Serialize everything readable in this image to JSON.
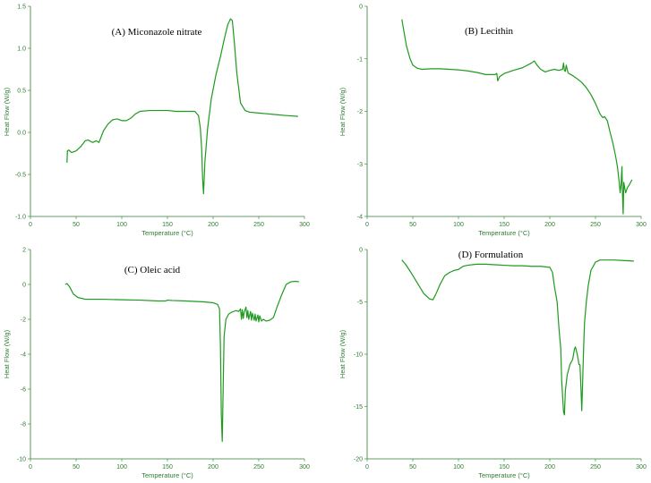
{
  "chart_data": [
    {
      "type": "line",
      "title": "(A) Miconazole nitrate",
      "xlabel": "Temperature (°C)",
      "ylabel": "Heat Flow (W/g)",
      "xlim": [
        0,
        300
      ],
      "ylim": [
        -1.0,
        1.5
      ],
      "xticks": [
        0,
        50,
        100,
        150,
        200,
        250,
        300
      ],
      "yticks": [
        -1.0,
        -0.5,
        0.0,
        0.5,
        1.0,
        1.5
      ],
      "ytick_labels": [
        "-1.0",
        "-0.5",
        "0.0",
        "0.5",
        "1.0",
        "1.5"
      ],
      "series": [
        {
          "color": "#1e9a1e",
          "x": [
            40,
            40.5,
            42,
            45,
            50,
            55,
            60,
            63,
            68,
            72,
            75,
            80,
            85,
            90,
            95,
            100,
            105,
            110,
            115,
            120,
            130,
            140,
            150,
            160,
            170,
            180,
            184,
            186,
            187.5,
            188.5,
            189.5,
            191,
            194,
            198,
            203,
            208,
            212,
            216,
            219,
            221,
            223,
            226,
            230,
            235,
            240,
            250,
            260,
            270,
            280,
            293
          ],
          "y": [
            -0.36,
            -0.22,
            -0.21,
            -0.24,
            -0.22,
            -0.17,
            -0.1,
            -0.09,
            -0.12,
            -0.1,
            -0.12,
            0.02,
            0.1,
            0.15,
            0.16,
            0.14,
            0.14,
            0.17,
            0.22,
            0.25,
            0.26,
            0.26,
            0.26,
            0.25,
            0.25,
            0.25,
            0.2,
            0.05,
            -0.2,
            -0.55,
            -0.73,
            -0.35,
            0.05,
            0.4,
            0.68,
            0.9,
            1.1,
            1.28,
            1.35,
            1.33,
            1.1,
            0.7,
            0.35,
            0.26,
            0.24,
            0.23,
            0.22,
            0.21,
            0.2,
            0.19
          ]
        }
      ]
    },
    {
      "type": "line",
      "title": "(B) Lecithin",
      "xlabel": "Temperature (°C)",
      "ylabel": "Heat Flow (W/g)",
      "xlim": [
        0,
        300
      ],
      "ylim": [
        -4,
        0
      ],
      "xticks": [
        0,
        50,
        100,
        150,
        200,
        250,
        300
      ],
      "yticks": [
        -4,
        -3,
        -2,
        -1,
        0
      ],
      "ytick_labels": [
        "-4",
        "-3",
        "-2",
        "-1",
        "0"
      ],
      "series": [
        {
          "color": "#1e9a1e",
          "x": [
            38,
            40,
            43,
            47,
            50,
            55,
            60,
            70,
            80,
            90,
            100,
            110,
            120,
            130,
            140,
            142,
            143,
            145,
            150,
            160,
            170,
            180,
            183,
            186,
            190,
            195,
            200,
            205,
            210,
            214,
            215,
            216,
            217,
            218,
            219,
            220,
            225,
            230,
            235,
            240,
            245,
            250,
            255,
            258,
            260,
            263,
            266,
            269,
            272,
            274,
            276,
            277,
            278,
            279,
            279.6,
            280.3,
            281,
            283,
            285,
            287,
            290
          ],
          "y": [
            -0.25,
            -0.45,
            -0.75,
            -1.0,
            -1.12,
            -1.18,
            -1.2,
            -1.19,
            -1.19,
            -1.2,
            -1.21,
            -1.23,
            -1.26,
            -1.3,
            -1.3,
            -1.28,
            -1.42,
            -1.34,
            -1.28,
            -1.22,
            -1.17,
            -1.08,
            -1.04,
            -1.12,
            -1.2,
            -1.25,
            -1.22,
            -1.2,
            -1.22,
            -1.2,
            -1.08,
            -1.22,
            -1.24,
            -1.12,
            -1.2,
            -1.27,
            -1.32,
            -1.38,
            -1.45,
            -1.55,
            -1.68,
            -1.85,
            -2.05,
            -2.12,
            -2.1,
            -2.18,
            -2.4,
            -2.6,
            -2.85,
            -3.05,
            -3.35,
            -3.55,
            -3.4,
            -3.05,
            -3.6,
            -3.95,
            -3.35,
            -3.55,
            -3.45,
            -3.4,
            -3.3
          ]
        }
      ]
    },
    {
      "type": "line",
      "title": "(C) Oleic acid",
      "xlabel": "Temperature (°C)",
      "ylabel": "Heat Flow (W/g)",
      "xlim": [
        0,
        300
      ],
      "ylim": [
        -10,
        2
      ],
      "xticks": [
        0,
        50,
        100,
        150,
        200,
        250,
        300
      ],
      "yticks": [
        -10,
        -8,
        -6,
        -4,
        -2,
        0,
        2
      ],
      "ytick_labels": [
        "-10",
        "-8",
        "-6",
        "-4",
        "-2",
        "0",
        "2"
      ],
      "series": [
        {
          "color": "#1e9a1e",
          "x": [
            38,
            40,
            43,
            47,
            52,
            60,
            80,
            100,
            120,
            140,
            148,
            150,
            155,
            170,
            190,
            200,
            205,
            207,
            208,
            209,
            210,
            211,
            212,
            214,
            217,
            220,
            225,
            228,
            230,
            231,
            232,
            233,
            234,
            236,
            237,
            238,
            239,
            241,
            242,
            243,
            245,
            246,
            247,
            249,
            250,
            251,
            253,
            255,
            258,
            262,
            266,
            270,
            275,
            280,
            285,
            290,
            294
          ],
          "y": [
            0.0,
            0.05,
            -0.15,
            -0.55,
            -0.75,
            -0.85,
            -0.85,
            -0.88,
            -0.9,
            -0.95,
            -0.95,
            -0.9,
            -0.92,
            -0.95,
            -1.0,
            -1.05,
            -1.15,
            -1.4,
            -3.5,
            -7.5,
            -9.0,
            -6.0,
            -3.0,
            -2.0,
            -1.7,
            -1.6,
            -1.5,
            -1.55,
            -1.4,
            -2.0,
            -1.45,
            -1.95,
            -1.6,
            -1.3,
            -1.9,
            -1.5,
            -2.0,
            -1.55,
            -2.05,
            -1.65,
            -2.05,
            -1.7,
            -2.1,
            -1.75,
            -2.15,
            -1.8,
            -2.1,
            -2.0,
            -2.1,
            -2.05,
            -1.9,
            -1.3,
            -0.6,
            0.0,
            0.15,
            0.18,
            0.15
          ]
        }
      ]
    },
    {
      "type": "line",
      "title": "(D) Formulation",
      "xlabel": "Temperature (°C)",
      "ylabel": "Heat Flow (W/g)",
      "xlim": [
        0,
        300
      ],
      "ylim": [
        -20,
        0
      ],
      "xticks": [
        0,
        50,
        100,
        150,
        200,
        250,
        300
      ],
      "yticks": [
        -20,
        -15,
        -10,
        -5,
        0
      ],
      "ytick_labels": [
        "-20",
        "-15",
        "-10",
        "-5",
        "0"
      ],
      "series": [
        {
          "color": "#1e9a1e",
          "x": [
            38,
            42,
            48,
            55,
            62,
            68,
            72,
            75,
            80,
            85,
            90,
            95,
            100,
            105,
            110,
            120,
            130,
            140,
            150,
            160,
            170,
            180,
            190,
            200,
            203,
            205,
            208,
            210,
            212,
            213,
            215,
            216,
            217,
            219,
            222,
            225,
            227,
            228,
            230,
            232,
            233,
            234,
            235,
            236,
            237,
            238,
            240,
            242,
            245,
            250,
            255,
            260,
            270,
            280,
            292
          ],
          "y": [
            -1.0,
            -1.4,
            -2.2,
            -3.2,
            -4.2,
            -4.7,
            -4.8,
            -4.3,
            -3.3,
            -2.5,
            -2.2,
            -2.0,
            -1.9,
            -1.6,
            -1.5,
            -1.4,
            -1.4,
            -1.45,
            -1.5,
            -1.55,
            -1.55,
            -1.6,
            -1.6,
            -1.7,
            -2.2,
            -3.5,
            -5.0,
            -7.5,
            -9.5,
            -12.5,
            -15.5,
            -15.8,
            -13.5,
            -12.0,
            -11.0,
            -10.5,
            -9.5,
            -9.3,
            -10.0,
            -11.0,
            -11.0,
            -13.0,
            -15.4,
            -12.5,
            -9.5,
            -7.0,
            -5.0,
            -3.5,
            -2.0,
            -1.2,
            -1.0,
            -1.0,
            -1.0,
            -1.05,
            -1.1
          ]
        }
      ]
    }
  ]
}
